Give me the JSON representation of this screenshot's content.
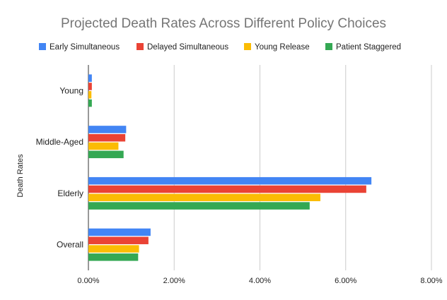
{
  "chart_data": {
    "type": "bar",
    "orientation": "horizontal",
    "title": "Projected Death Rates Across Different Policy Choices",
    "xlabel": "",
    "ylabel": "Death Rates",
    "categories": [
      "Young",
      "Middle-Aged",
      "Elderly",
      "Overall"
    ],
    "series": [
      {
        "name": "Early Simultaneous",
        "color": "#4285F4",
        "values": [
          0.0008,
          0.0088,
          0.066,
          0.0145
        ]
      },
      {
        "name": "Delayed Simultaneous",
        "color": "#EA4335",
        "values": [
          0.0008,
          0.0086,
          0.0648,
          0.014
        ]
      },
      {
        "name": "Young Release",
        "color": "#FBBC04",
        "values": [
          0.0007,
          0.007,
          0.0541,
          0.0118
        ]
      },
      {
        "name": "Patient Staggered",
        "color": "#34A853",
        "values": [
          0.0008,
          0.0082,
          0.0516,
          0.0116
        ]
      }
    ],
    "xlim": [
      0,
      0.08
    ],
    "xticks": [
      0,
      0.02,
      0.04,
      0.06,
      0.08
    ],
    "xtick_labels": [
      "0.00%",
      "2.00%",
      "4.00%",
      "6.00%",
      "8.00%"
    ],
    "grid": true,
    "legend_position": "top"
  }
}
